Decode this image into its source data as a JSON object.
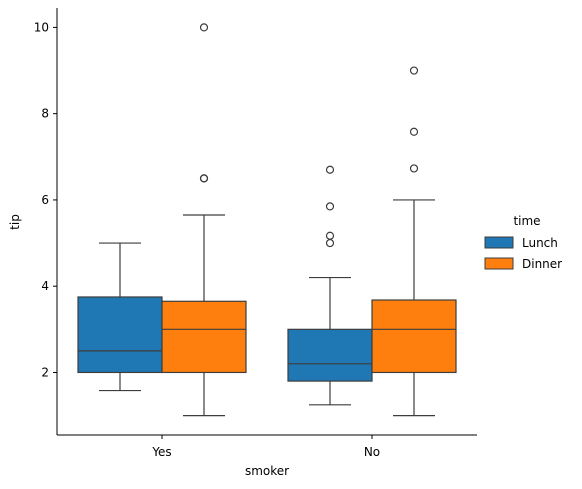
{
  "chart_data": {
    "type": "box",
    "xlabel": "smoker",
    "ylabel": "tip",
    "ylim": [
      0.55,
      10.45
    ],
    "yticks": [
      2,
      4,
      6,
      8,
      10
    ],
    "categories": [
      "Yes",
      "No"
    ],
    "legend": {
      "title": "time",
      "placement": "right"
    },
    "series": [
      {
        "name": "Lunch",
        "color": "#1f77b4",
        "boxes": [
          {
            "whislo": 1.58,
            "q1": 2.0,
            "med": 2.5,
            "q3": 3.75,
            "whishi": 5.0,
            "fliers": []
          },
          {
            "whislo": 1.25,
            "q1": 1.8,
            "med": 2.2,
            "q3": 3.0,
            "whishi": 4.2,
            "fliers": [
              5.0,
              5.17,
              5.85,
              6.7
            ]
          }
        ]
      },
      {
        "name": "Dinner",
        "color": "#ff7f0e",
        "boxes": [
          {
            "whislo": 1.0,
            "q1": 2.0,
            "med": 3.0,
            "q3": 3.65,
            "whishi": 5.65,
            "fliers": [
              6.5,
              6.5,
              10.0
            ]
          },
          {
            "whislo": 1.0,
            "q1": 2.0,
            "med": 3.0,
            "q3": 3.68,
            "whishi": 6.0,
            "fliers": [
              6.73,
              7.58,
              9.0
            ]
          }
        ]
      }
    ]
  }
}
